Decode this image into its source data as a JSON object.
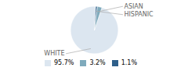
{
  "chart_data": {
    "type": "pie",
    "categories": [
      "WHITE",
      "ASIAN",
      "HISPANIC"
    ],
    "values": [
      95.7,
      3.2,
      1.1
    ],
    "value_labels": [
      "95.7%",
      "3.2%",
      "1.1%"
    ],
    "colors": [
      "#dce6f0",
      "#7faabc",
      "#2e5f8a"
    ],
    "legend": "bottom"
  }
}
